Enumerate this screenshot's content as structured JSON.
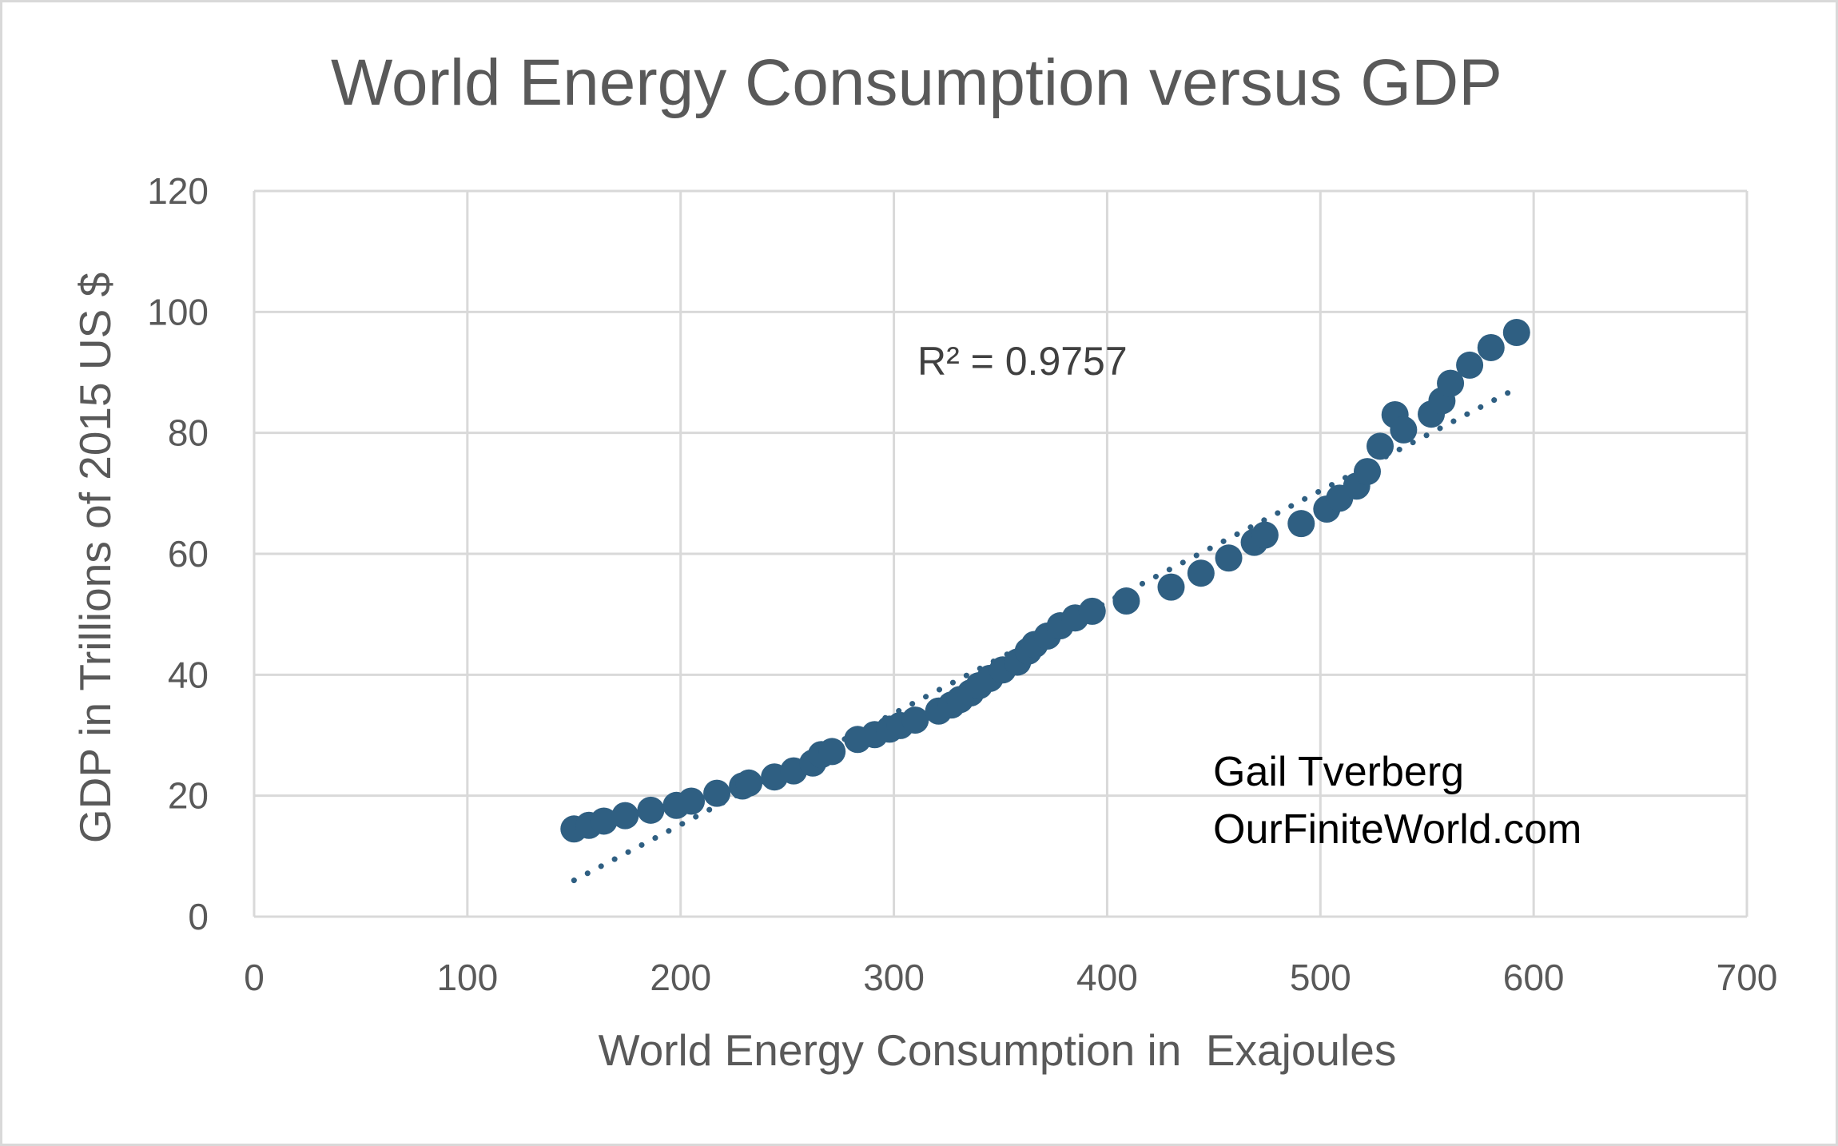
{
  "chart_data": {
    "type": "scatter",
    "title": "World Energy Consumption versus GDP",
    "xlabel": "World Energy Consumption in  Exajoules",
    "ylabel": "GDP in Trillions of 2015 US $",
    "xlim": [
      0,
      700
    ],
    "ylim": [
      0,
      120
    ],
    "xticks": [
      "0",
      "100",
      "200",
      "300",
      "400",
      "500",
      "600",
      "700"
    ],
    "yticks": [
      "0",
      "20",
      "40",
      "60",
      "80",
      "100",
      "120"
    ],
    "grid": true,
    "legend": "none",
    "marker_color": "#2f5f82",
    "trendline": {
      "type": "linear",
      "style": "dotted",
      "color": "#2f5f82",
      "from": [
        150,
        6
      ],
      "to": [
        590,
        87
      ],
      "r_squared_label": "R² = 0.9757"
    },
    "series": [
      {
        "x": [
          150,
          157,
          164,
          174,
          186,
          198,
          205,
          217,
          229,
          232,
          244,
          253,
          262,
          266,
          271,
          283,
          291,
          298,
          303,
          310,
          321,
          327,
          331,
          336,
          340,
          345,
          351,
          358,
          363,
          366,
          372,
          378,
          385,
          393,
          409,
          430,
          444,
          457,
          469,
          474,
          491,
          503,
          509,
          517,
          522,
          528,
          535,
          539,
          552,
          557,
          561,
          570,
          580,
          592
        ],
        "y": [
          14.5,
          15.1,
          15.8,
          16.7,
          17.6,
          18.4,
          19.1,
          20.4,
          21.6,
          22.1,
          23.1,
          24.1,
          25.4,
          26.8,
          27.3,
          29.3,
          30.1,
          31.0,
          31.6,
          32.5,
          34.0,
          35.0,
          35.9,
          37.0,
          38.2,
          39.4,
          40.8,
          42.1,
          43.9,
          45.0,
          46.4,
          48.1,
          49.4,
          50.5,
          52.2,
          54.5,
          56.8,
          59.3,
          61.9,
          63.1,
          65.0,
          67.4,
          69.2,
          71.2,
          73.6,
          77.8,
          83.0,
          80.5,
          83.1,
          85.3,
          88.2,
          91.2,
          94.1,
          96.6
        ]
      }
    ]
  },
  "annotations": {
    "r_squared": "R² = 0.9757",
    "credit_line1": "Gail Tverberg",
    "credit_line2": "OurFiniteWorld.com"
  }
}
